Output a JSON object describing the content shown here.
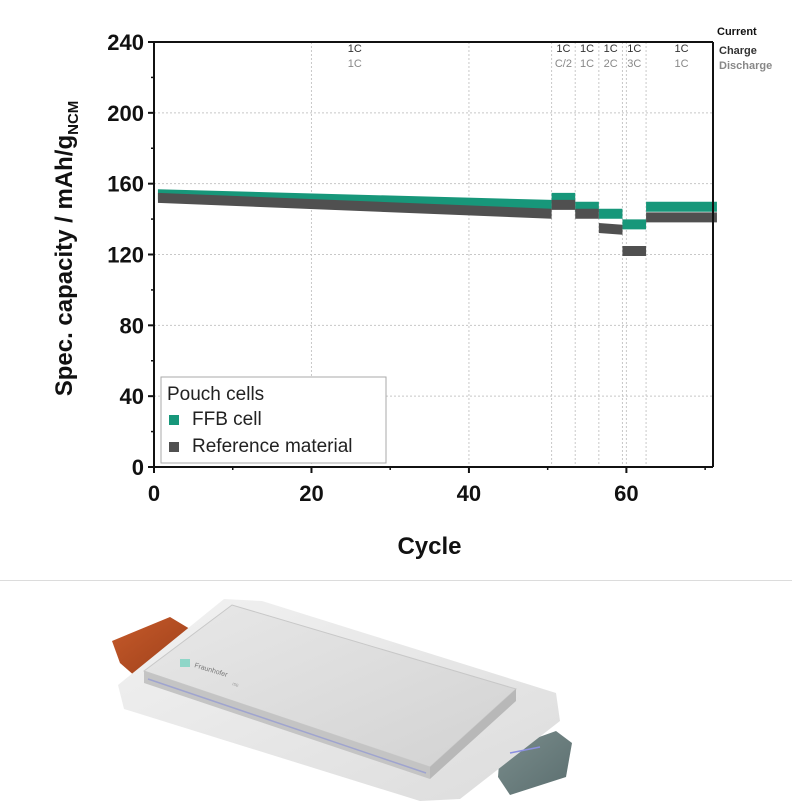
{
  "chart_data": {
    "type": "scatter",
    "title": "",
    "xlabel": "Cycle",
    "ylabel": "Spec. capacity  /  mAh/g",
    "ylabel_subscript": "NCM",
    "xlim": [
      0,
      71
    ],
    "ylim": [
      0,
      240
    ],
    "xticks": [
      0,
      20,
      40,
      60
    ],
    "yticks": [
      0,
      40,
      80,
      120,
      160,
      200,
      240
    ],
    "grid": "dotted vertical at step boundaries",
    "legend": {
      "title": "Pouch cells",
      "placement": "bottom-left",
      "entries": [
        "FFB cell",
        "Reference material"
      ]
    },
    "current_header": "Current",
    "charge_label": "Charge",
    "discharge_label": "Discharge",
    "steps": [
      {
        "x_from": 1,
        "x_to": 50,
        "charge": "1C",
        "discharge": "1C"
      },
      {
        "x_from": 51,
        "x_to": 53,
        "charge": "1C",
        "discharge": "C/2"
      },
      {
        "x_from": 54,
        "x_to": 56,
        "charge": "1C",
        "discharge": "1C"
      },
      {
        "x_from": 57,
        "x_to": 59,
        "charge": "1C",
        "discharge": "2C"
      },
      {
        "x_from": 60,
        "x_to": 62,
        "charge": "1C",
        "discharge": "3C"
      },
      {
        "x_from": 63,
        "x_to": 71,
        "charge": "1C",
        "discharge": "1C"
      }
    ],
    "series": [
      {
        "name": "FFB cell",
        "color": "#17977a",
        "segments": [
          {
            "x_from": 1,
            "x_to": 50,
            "y_from": 154,
            "y_to": 148
          },
          {
            "x_from": 51,
            "x_to": 53,
            "y_from": 152,
            "y_to": 152
          },
          {
            "x_from": 54,
            "x_to": 56,
            "y_from": 147,
            "y_to": 147
          },
          {
            "x_from": 57,
            "x_to": 59,
            "y_from": 143,
            "y_to": 143
          },
          {
            "x_from": 60,
            "x_to": 62,
            "y_from": 137,
            "y_to": 137
          },
          {
            "x_from": 63,
            "x_to": 71,
            "y_from": 147,
            "y_to": 147
          }
        ]
      },
      {
        "name": "Reference material",
        "color": "#505050",
        "segments": [
          {
            "x_from": 1,
            "x_to": 50,
            "y_from": 152,
            "y_to": 143
          },
          {
            "x_from": 51,
            "x_to": 53,
            "y_from": 148,
            "y_to": 148
          },
          {
            "x_from": 54,
            "x_to": 56,
            "y_from": 143,
            "y_to": 143
          },
          {
            "x_from": 57,
            "x_to": 59,
            "y_from": 135,
            "y_to": 134
          },
          {
            "x_from": 60,
            "x_to": 62,
            "y_from": 122,
            "y_to": 122
          },
          {
            "x_from": 63,
            "x_to": 71,
            "y_from": 141,
            "y_to": 141
          }
        ]
      }
    ]
  },
  "cell_image": {
    "logo_text": "Fraunhofer",
    "logo_subtext": "ISE"
  }
}
